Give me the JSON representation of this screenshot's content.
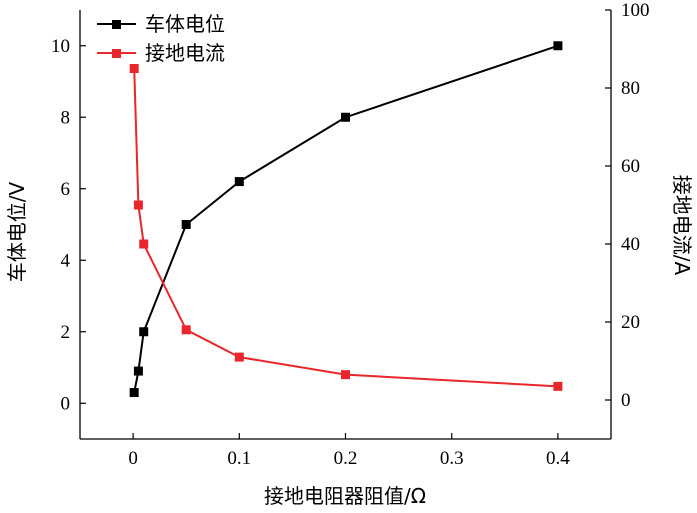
{
  "chart_data": {
    "type": "line",
    "xlabel": "接地电阻器阻值/Ω",
    "ylabel_left": "车体电位/V",
    "ylabel_right": "接地电流/A",
    "xlim": [
      -0.05,
      0.45
    ],
    "ylim_left": [
      -1.0,
      11.0
    ],
    "ylim_right": [
      -10,
      100
    ],
    "x_ticks": [
      0,
      0.1,
      0.2,
      0.3,
      0.4
    ],
    "x_tick_labels": [
      "0",
      "0.1",
      "0.2",
      "0.3",
      "0.4"
    ],
    "y_left_ticks": [
      0,
      2,
      4,
      6,
      8,
      10
    ],
    "y_left_tick_labels": [
      "0",
      "2",
      "4",
      "6",
      "8",
      "10"
    ],
    "y_right_ticks": [
      0,
      20,
      40,
      60,
      80,
      100
    ],
    "y_right_tick_labels": [
      "0",
      "20",
      "40",
      "60",
      "80",
      "100"
    ],
    "legend_position": "top-left",
    "series": [
      {
        "name": "车体电位",
        "axis": "left",
        "color": "#000000",
        "x": [
          0.001,
          0.005,
          0.01,
          0.05,
          0.1,
          0.2,
          0.4
        ],
        "y": [
          0.3,
          0.9,
          2.0,
          5.0,
          6.2,
          8.0,
          10.0
        ]
      },
      {
        "name": "接地电流",
        "axis": "right",
        "color": "#e8262b",
        "x": [
          0.001,
          0.005,
          0.01,
          0.05,
          0.1,
          0.2,
          0.4
        ],
        "y": [
          85.0,
          50.0,
          40.0,
          18.0,
          11.0,
          6.5,
          3.5
        ]
      }
    ]
  }
}
